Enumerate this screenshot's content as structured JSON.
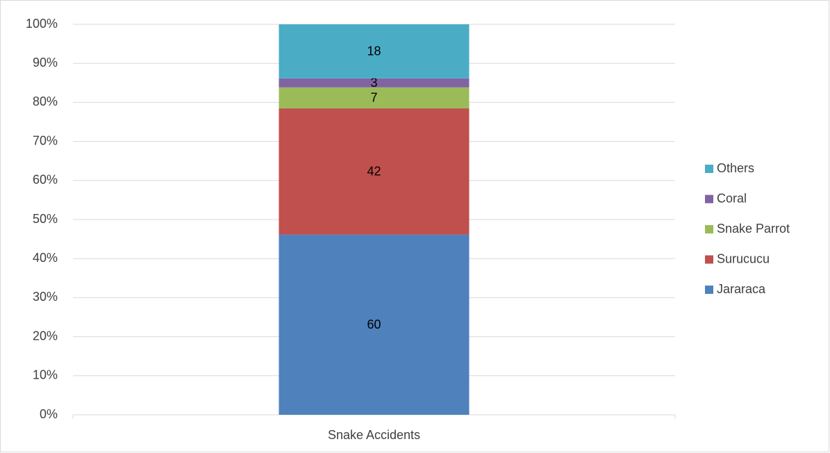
{
  "chart_data": {
    "type": "bar",
    "stacking": "percent",
    "categories": [
      "Snake Accidents"
    ],
    "series": [
      {
        "name": "Jararaca",
        "color": "#4f81bd",
        "values": [
          60
        ]
      },
      {
        "name": "Surucucu",
        "color": "#c0504d",
        "values": [
          42
        ]
      },
      {
        "name": "Snake Parrot",
        "color": "#9bbb59",
        "values": [
          7
        ]
      },
      {
        "name": "Coral",
        "color": "#8064a2",
        "values": [
          3
        ]
      },
      {
        "name": "Others",
        "color": "#4bacc6",
        "values": [
          18
        ]
      }
    ],
    "ylim": [
      0,
      100
    ],
    "yticks": [
      {
        "value": 0,
        "label": "0%"
      },
      {
        "value": 10,
        "label": "10%"
      },
      {
        "value": 20,
        "label": "20%"
      },
      {
        "value": 30,
        "label": "30%"
      },
      {
        "value": 40,
        "label": "40%"
      },
      {
        "value": 50,
        "label": "50%"
      },
      {
        "value": 60,
        "label": "60%"
      },
      {
        "value": 70,
        "label": "70%"
      },
      {
        "value": 80,
        "label": "80%"
      },
      {
        "value": 90,
        "label": "90%"
      },
      {
        "value": 100,
        "label": "100%"
      }
    ],
    "grid": true,
    "legend": "right"
  }
}
